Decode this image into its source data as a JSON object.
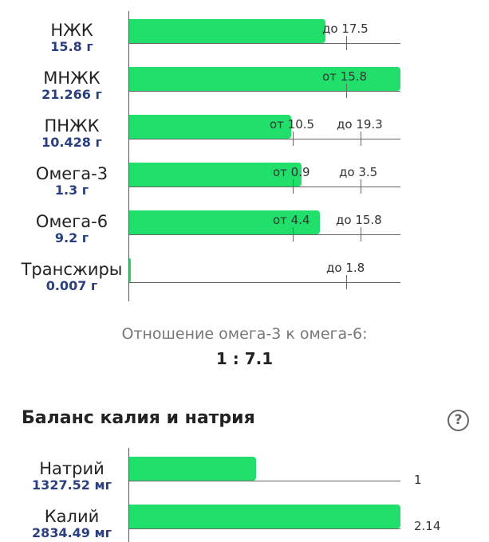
{
  "fats": {
    "rows": [
      {
        "name": "НЖК",
        "value": "15.8 г",
        "ticks": [
          "до 17.5"
        ]
      },
      {
        "name": "МНЖК",
        "value": "21.266 г",
        "ticks": [
          "от 15.8"
        ]
      },
      {
        "name": "ПНЖК",
        "value": "10.428 г",
        "ticks": [
          "от 10.5",
          "до 19.3"
        ]
      },
      {
        "name": "Омега-3",
        "value": "1.3 г",
        "ticks": [
          "от 0.9",
          "до 3.5"
        ]
      },
      {
        "name": "Омега-6",
        "value": "9.2 г",
        "ticks": [
          "от 4.4",
          "до 15.8"
        ]
      },
      {
        "name": "Трансжиры",
        "value": "0.007 г",
        "ticks": [
          "до 1.8"
        ]
      }
    ]
  },
  "ratio": {
    "caption": "Отношение омега-3 к омега-6:",
    "value": "1 : 7.1"
  },
  "balance": {
    "title": "Баланс калия и натрия",
    "help_icon": "?",
    "rows": [
      {
        "name": "Натрий",
        "value": "1327.52 мг",
        "marker": "1"
      },
      {
        "name": "Калий",
        "value": "2834.49 мг",
        "marker": "2.14"
      }
    ]
  },
  "colors": {
    "bar": "#20e06b",
    "value_text": "#2b3f80"
  }
}
